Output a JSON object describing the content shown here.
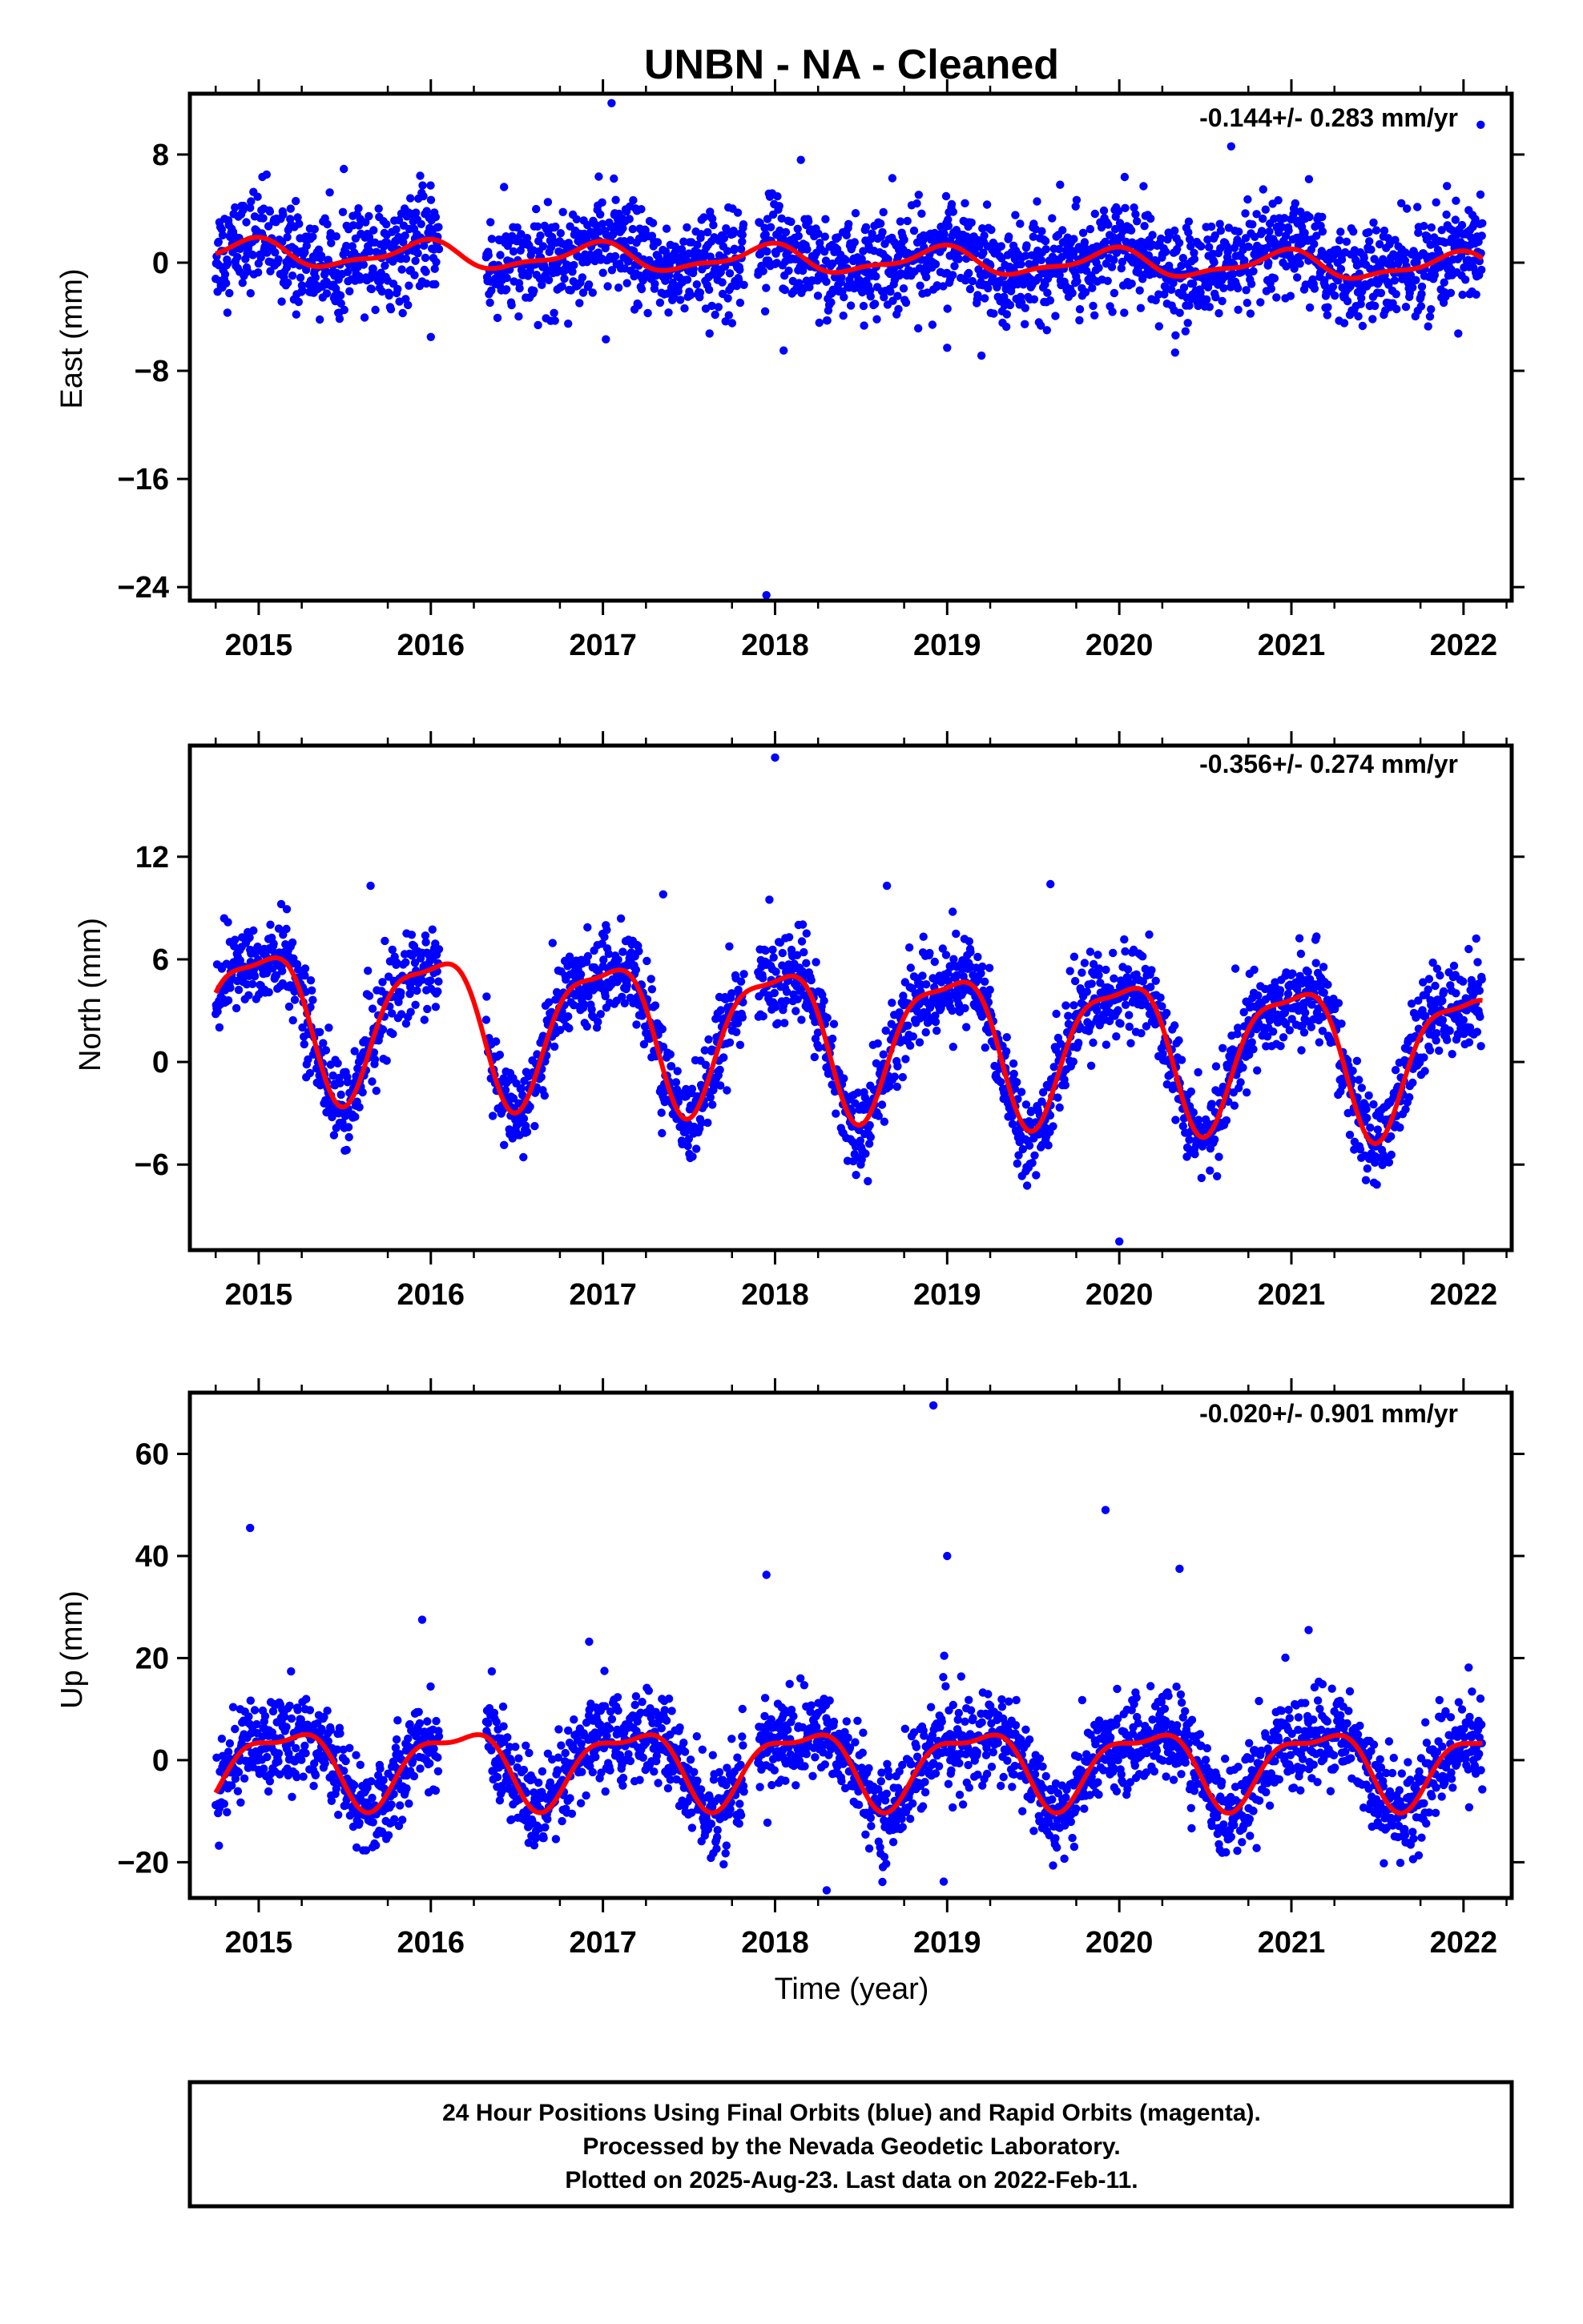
{
  "chart_data": {
    "title": "UNBN  - NA - Cleaned",
    "xlabel": "Time (year)",
    "x_ticks": [
      "2015",
      "2016",
      "2017",
      "2018",
      "2019",
      "2020",
      "2021",
      "2022"
    ],
    "xlim": [
      2014.6,
      2022.28
    ],
    "colors": {
      "points": "#0000ff",
      "fit": "#ff0000",
      "frame": "#000000"
    },
    "panels": [
      {
        "type": "scatter",
        "ylabel": "East (mm)",
        "ylim": [
          -25,
          12.5
        ],
        "y_ticks": [
          "8",
          "0",
          "−8",
          "−16",
          "−24"
        ],
        "y_tick_values": [
          8,
          0,
          -8,
          -16,
          -24
        ],
        "rate": "-0.144+/- 0.283 mm/yr",
        "noise": 1.8,
        "fit": {
          "mean": 0.2,
          "trend": -0.144,
          "a1": 0.9,
          "p1": 0.3,
          "a2": 0.35,
          "p2": 1.2
        },
        "outliers": [
          [
            2017.05,
            11.8
          ],
          [
            2017.95,
            -24.6
          ],
          [
            2018.15,
            7.6
          ],
          [
            2020.65,
            8.6
          ],
          [
            2022.1,
            10.2
          ],
          [
            2016.0,
            -5.5
          ],
          [
            2018.05,
            -6.5
          ],
          [
            2019.0,
            -6.3
          ]
        ]
      },
      {
        "type": "scatter",
        "ylabel": "North (mm)",
        "ylim": [
          -11,
          18.5
        ],
        "y_ticks": [
          "12",
          "6",
          "0",
          "−6"
        ],
        "y_tick_values": [
          12,
          6,
          0,
          -6
        ],
        "rate": "-0.356+/- 0.274 mm/yr",
        "noise": 1.3,
        "fit": {
          "mean": 1.6,
          "trend": -0.356,
          "a1": 4.1,
          "p1": 0.25,
          "a2": 1.2,
          "p2": 0.8
        },
        "outliers": [
          [
            2018.0,
            17.8
          ],
          [
            2020.0,
            -10.5
          ],
          [
            2015.65,
            10.3
          ],
          [
            2018.65,
            10.3
          ],
          [
            2019.6,
            10.4
          ],
          [
            2017.35,
            9.8
          ]
        ]
      },
      {
        "type": "scatter",
        "ylabel": "Up (mm)",
        "ylim": [
          -27,
          72
        ],
        "y_ticks": [
          "60",
          "40",
          "20",
          "0",
          "−20"
        ],
        "y_tick_values": [
          60,
          40,
          20,
          0,
          -20
        ],
        "rate": "-0.020+/- 0.901 mm/yr",
        "noise": 4.5,
        "fit": {
          "mean": -0.8,
          "trend": -0.02,
          "a1": 7.0,
          "p1": 0.1,
          "a2": 2.6,
          "p2": 0.5
        },
        "outliers": [
          [
            2014.95,
            45.5
          ],
          [
            2015.95,
            27.5
          ],
          [
            2017.95,
            36.3
          ],
          [
            2018.92,
            69.5
          ],
          [
            2019.0,
            40.0
          ],
          [
            2019.92,
            49.0
          ],
          [
            2020.35,
            37.5
          ],
          [
            2021.1,
            25.5
          ],
          [
            2016.92,
            23.2
          ],
          [
            2018.3,
            -25.5
          ],
          [
            2018.98,
            -23.8
          ]
        ]
      }
    ]
  },
  "footer": {
    "line1": "24 Hour Positions Using Final Orbits (blue) and Rapid Orbits (magenta).",
    "line2": "Processed by the Nevada Geodetic Laboratory.",
    "line3": "Plotted on 2025-Aug-23. Last data on 2022-Feb-11."
  }
}
